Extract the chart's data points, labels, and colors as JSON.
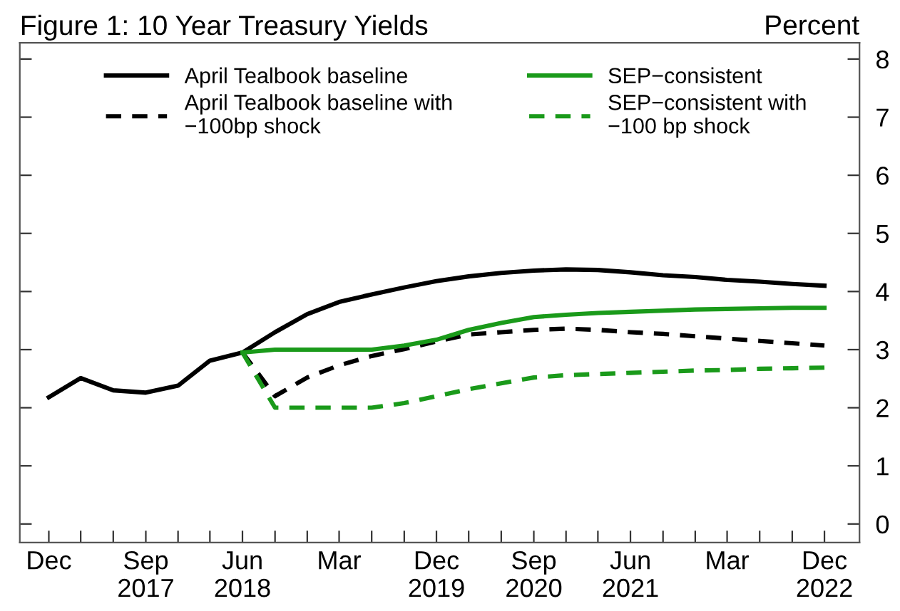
{
  "chart_data": {
    "type": "line",
    "title": "Figure 1: 10 Year Treasury Yields",
    "ylabel": "Percent",
    "x": [
      "2016-12",
      "2017-03",
      "2017-06",
      "2017-09",
      "2017-12",
      "2018-03",
      "2018-06",
      "2018-09",
      "2018-12",
      "2019-03",
      "2019-06",
      "2019-09",
      "2019-12",
      "2020-03",
      "2020-06",
      "2020-09",
      "2020-12",
      "2021-03",
      "2021-06",
      "2021-09",
      "2021-12",
      "2022-03",
      "2022-06",
      "2022-09",
      "2022-12"
    ],
    "series": [
      {
        "name": "April Tealbook baseline",
        "color": "#000000",
        "line_style": "solid",
        "values": [
          2.18,
          2.51,
          2.3,
          2.26,
          2.38,
          2.81,
          2.95,
          3.3,
          3.61,
          3.82,
          3.95,
          4.07,
          4.18,
          4.26,
          4.32,
          4.36,
          4.38,
          4.37,
          4.33,
          4.28,
          4.25,
          4.2,
          4.17,
          4.13,
          4.1
        ]
      },
      {
        "name": "April Tealbook baseline with\n−100bp shock",
        "color": "#000000",
        "line_style": "dashed",
        "values": [
          null,
          null,
          null,
          null,
          null,
          null,
          2.95,
          2.2,
          2.52,
          2.73,
          2.89,
          3.01,
          3.14,
          3.26,
          3.3,
          3.34,
          3.36,
          3.34,
          3.3,
          3.27,
          3.23,
          3.19,
          3.15,
          3.11,
          3.07
        ]
      },
      {
        "name": "SEP−consistent",
        "color": "#1a9a1a",
        "line_style": "solid",
        "values": [
          null,
          null,
          null,
          null,
          null,
          null,
          2.95,
          3.0,
          3.0,
          3.0,
          3.0,
          3.07,
          3.17,
          3.34,
          3.46,
          3.56,
          3.6,
          3.63,
          3.65,
          3.67,
          3.69,
          3.7,
          3.71,
          3.72,
          3.72
        ]
      },
      {
        "name": "SEP−consistent with\n−100 bp shock",
        "color": "#1a9a1a",
        "line_style": "dashed",
        "values": [
          null,
          null,
          null,
          null,
          null,
          null,
          2.95,
          2.0,
          2.0,
          2.0,
          2.0,
          2.08,
          2.2,
          2.32,
          2.42,
          2.52,
          2.56,
          2.58,
          2.6,
          2.62,
          2.64,
          2.65,
          2.67,
          2.68,
          2.69
        ]
      }
    ],
    "xlim": [
      "2016-09-10",
      "2023-03-10"
    ],
    "xticks": [
      {
        "value": "2016-12",
        "label": "Dec"
      },
      {
        "value": "2017-03",
        "label": null
      },
      {
        "value": "2017-06",
        "label": null
      },
      {
        "value": "2017-09",
        "label": "Sep\n2017"
      },
      {
        "value": "2017-12",
        "label": null
      },
      {
        "value": "2018-03",
        "label": null
      },
      {
        "value": "2018-06",
        "label": "Jun\n2018"
      },
      {
        "value": "2018-09",
        "label": null
      },
      {
        "value": "2018-12",
        "label": null
      },
      {
        "value": "2019-03",
        "label": "Mar"
      },
      {
        "value": "2019-06",
        "label": null
      },
      {
        "value": "2019-09",
        "label": null
      },
      {
        "value": "2019-12",
        "label": "Dec\n2019"
      },
      {
        "value": "2020-03",
        "label": null
      },
      {
        "value": "2020-06",
        "label": null
      },
      {
        "value": "2020-09",
        "label": "Sep\n2020"
      },
      {
        "value": "2020-12",
        "label": null
      },
      {
        "value": "2021-03",
        "label": null
      },
      {
        "value": "2021-06",
        "label": "Jun\n2021"
      },
      {
        "value": "2021-09",
        "label": null
      },
      {
        "value": "2021-12",
        "label": null
      },
      {
        "value": "2022-03",
        "label": "Mar"
      },
      {
        "value": "2022-06",
        "label": null
      },
      {
        "value": "2022-09",
        "label": null
      },
      {
        "value": "2022-12",
        "label": "Dec\n2022"
      }
    ],
    "ylim": [
      -0.32,
      8.28
    ],
    "yticks": [
      0,
      1,
      2,
      3,
      4,
      5,
      6,
      7,
      8
    ],
    "grid": false,
    "legend": "top",
    "marker": "none"
  }
}
